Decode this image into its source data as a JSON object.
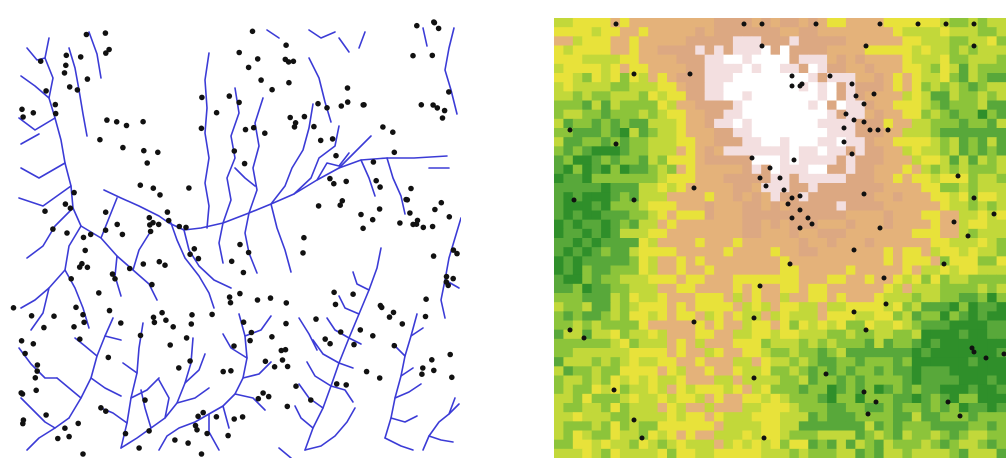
{
  "panels": [
    {
      "id": "left",
      "kind": "river-network-with-point-locations",
      "stream_color": "#3b3bd6",
      "point_color": "#111111",
      "background": "#ffffff"
    },
    {
      "id": "right",
      "kind": "gridded-raster-with-point-locations",
      "grid_cells": 48,
      "point_color": "#111111",
      "palette": [
        "#2f8f2a",
        "#58a83a",
        "#8cc43a",
        "#c2d83a",
        "#e8e23a",
        "#e4b27a",
        "#dca882",
        "#f3dfe0",
        "#ffffff"
      ]
    }
  ]
}
